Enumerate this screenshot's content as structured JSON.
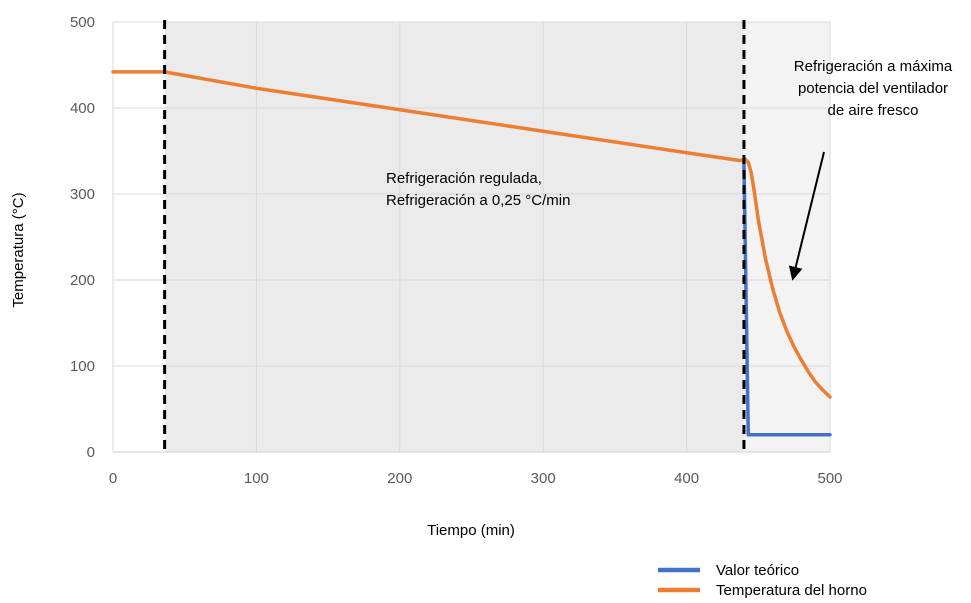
{
  "chart_data": {
    "type": "line",
    "xlabel": "Tiempo (min)",
    "ylabel": "Temperatura (°C)",
    "xlim": [
      0,
      500
    ],
    "ylim": [
      0,
      500
    ],
    "x_ticks": [
      0,
      100,
      200,
      300,
      400,
      500
    ],
    "y_ticks": [
      0,
      100,
      200,
      300,
      400,
      500
    ],
    "grid": true,
    "legend_position": "bottom-right",
    "regions": [
      {
        "x_start": 36,
        "x_end": 440,
        "color": "#ebebeb"
      },
      {
        "x_start": 440,
        "x_end": 500,
        "color": "#f3f3f3"
      }
    ],
    "vertical_lines": [
      36,
      440
    ],
    "series": [
      {
        "name": "Valor teórico",
        "color": "#4472c4",
        "points": [
          [
            440,
            337
          ],
          [
            443,
            20
          ],
          [
            500,
            20
          ]
        ]
      },
      {
        "name": "Temperatura del horno",
        "color": "#ed7d31",
        "points": [
          [
            0,
            442
          ],
          [
            36,
            442
          ],
          [
            100,
            423
          ],
          [
            200,
            398
          ],
          [
            300,
            373
          ],
          [
            400,
            348
          ],
          [
            437,
            339
          ],
          [
            441,
            340
          ],
          [
            443,
            337
          ],
          [
            445,
            325
          ],
          [
            447,
            305
          ],
          [
            450,
            270
          ],
          [
            455,
            225
          ],
          [
            460,
            190
          ],
          [
            465,
            162
          ],
          [
            470,
            140
          ],
          [
            475,
            122
          ],
          [
            480,
            107
          ],
          [
            485,
            93
          ],
          [
            490,
            81
          ],
          [
            495,
            72
          ],
          [
            500,
            64
          ]
        ]
      }
    ],
    "annotations": [
      {
        "id": "regulated",
        "lines": [
          "Refrigeración regulada,",
          "Refrigeración a 0,25 °C/min"
        ]
      },
      {
        "id": "max",
        "lines": [
          "Refrigeración a máxima",
          "potencia del ventilador",
          "de aire fresco"
        ]
      }
    ]
  }
}
